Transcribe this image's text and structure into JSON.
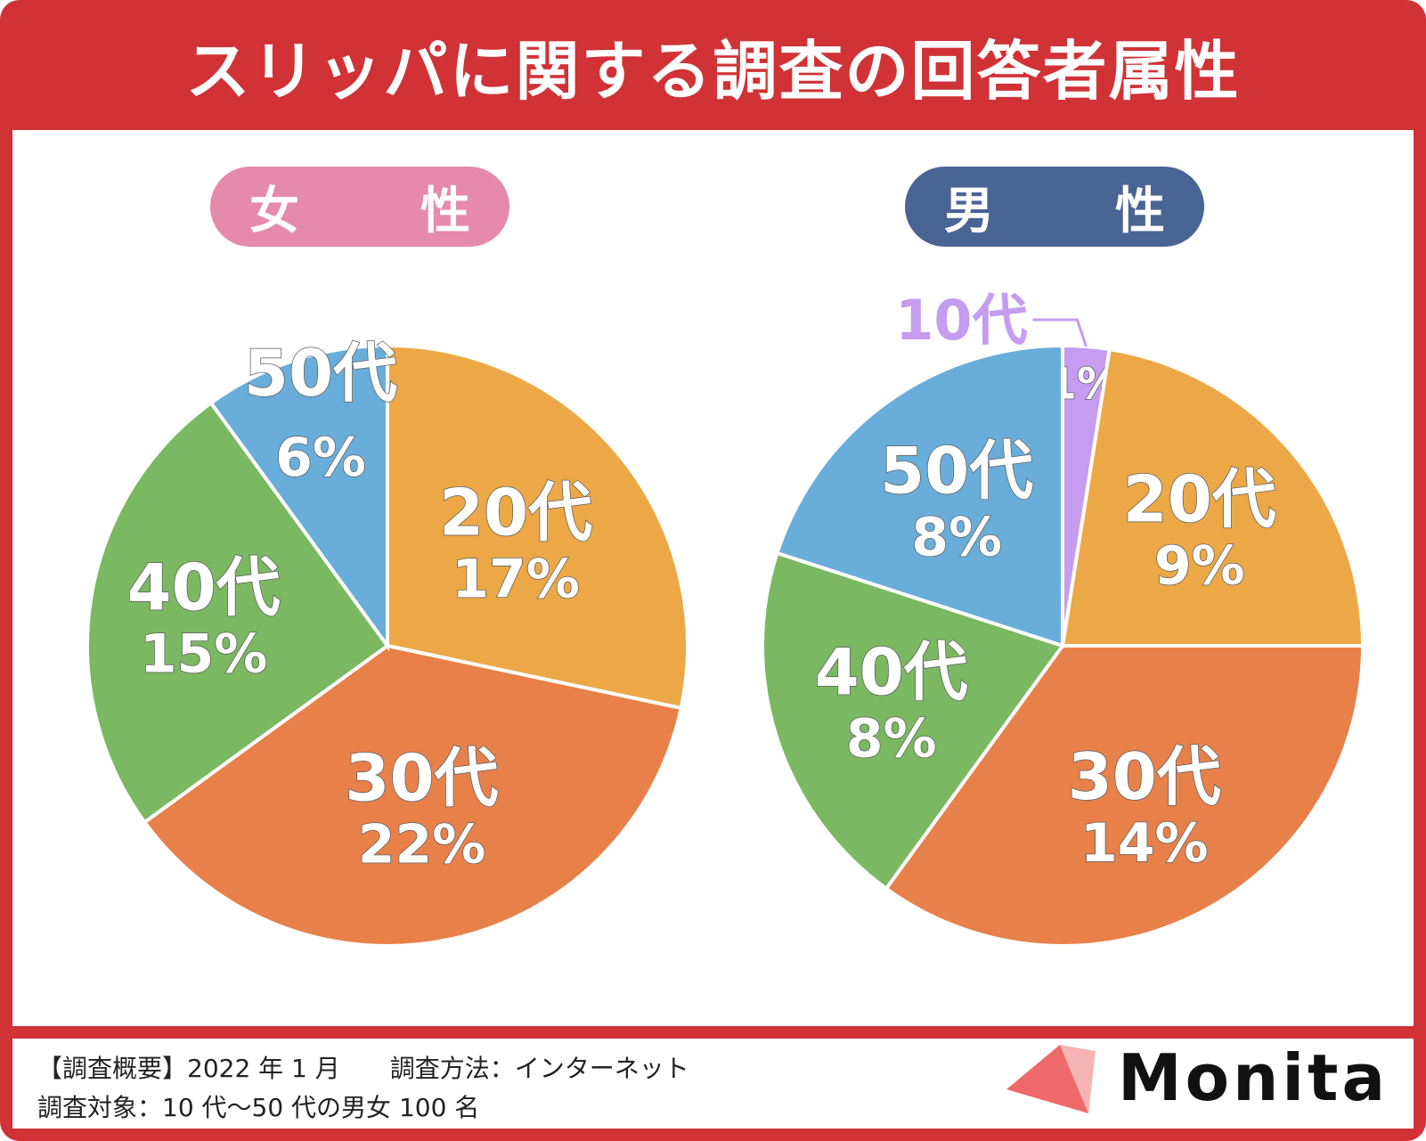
{
  "title": "スリッパに関する調査の回答者属性",
  "colors": {
    "frame": "#d03236",
    "female_pill": "#e58aab",
    "male_pill": "#4a6493",
    "10s": "#c59cf0",
    "20s": "#eca846",
    "30s": "#e8804a",
    "40s": "#7ab862",
    "50s": "#69aedb",
    "logo_triangle": "#ee6a6a"
  },
  "chart_data": [
    {
      "type": "pie",
      "title": "女　性",
      "slices": [
        {
          "label": "20代",
          "value": 17,
          "value_text": "17%"
        },
        {
          "label": "30代",
          "value": 22,
          "value_text": "22%"
        },
        {
          "label": "40代",
          "value": 15,
          "value_text": "15%"
        },
        {
          "label": "50代",
          "value": 6,
          "value_text": "6%"
        }
      ]
    },
    {
      "type": "pie",
      "title": "男　性",
      "slices": [
        {
          "label": "10代",
          "value": 1,
          "value_text": "1%"
        },
        {
          "label": "20代",
          "value": 9,
          "value_text": "9%"
        },
        {
          "label": "30代",
          "value": 14,
          "value_text": "14%"
        },
        {
          "label": "40代",
          "value": 8,
          "value_text": "8%"
        },
        {
          "label": "50代",
          "value": 8,
          "value_text": "8%"
        }
      ]
    }
  ],
  "footer": {
    "line1": "【調査概要】2022 年 1 月　　調査方法：インターネット",
    "line2": "調査対象：10 代〜50 代の男女 100 名",
    "logo": "Monita",
    "logo_icon": "triangle-logo-icon"
  }
}
